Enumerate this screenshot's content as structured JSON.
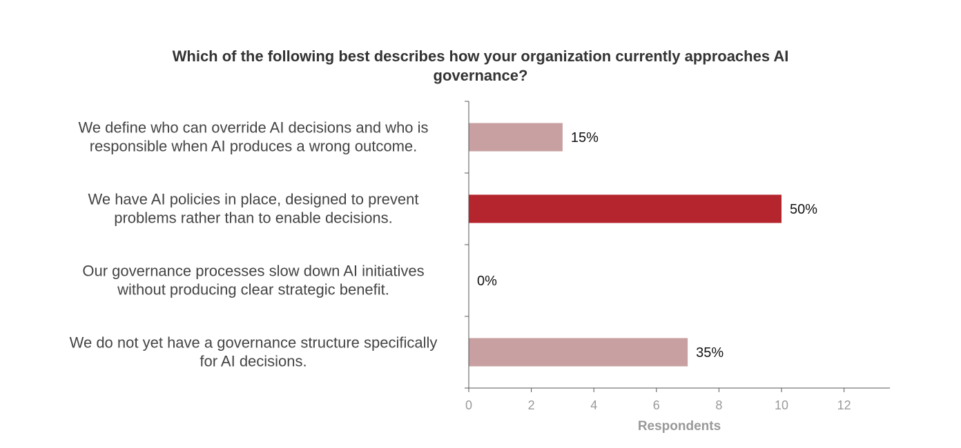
{
  "chart_data": {
    "type": "bar",
    "orientation": "horizontal",
    "title": "Which of the following best describes how your organization currently approaches AI governance?",
    "title_lines": [
      "Which of the following best describes how your organization currently approaches AI",
      "governance?"
    ],
    "xlabel": "Respondents",
    "ylabel": "",
    "xlim": [
      0,
      13.5
    ],
    "xticks": [
      0,
      2,
      4,
      6,
      8,
      10,
      12
    ],
    "grid": false,
    "categories": [
      [
        "We define who can override AI decisions and who is",
        "responsible when AI produces a wrong outcome."
      ],
      [
        "We have AI policies in place, designed to prevent",
        "problems rather than to enable decisions."
      ],
      [
        "Our governance processes slow down AI initiatives",
        "without producing clear strategic benefit."
      ],
      [
        "We do not yet have a governance structure specifically",
        "for AI decisions."
      ]
    ],
    "values": [
      3,
      10,
      0,
      7
    ],
    "data_labels": [
      "15%",
      "50%",
      "0%",
      "35%"
    ],
    "highlight_index": 1,
    "colors": {
      "bar": "#c8a0a2",
      "highlight": "#b5252e",
      "axis": "#555555",
      "tick_label": "#999999",
      "axis_title": "#999999",
      "category_label": "#444444",
      "data_label": "#111111",
      "title": "#333333"
    }
  }
}
